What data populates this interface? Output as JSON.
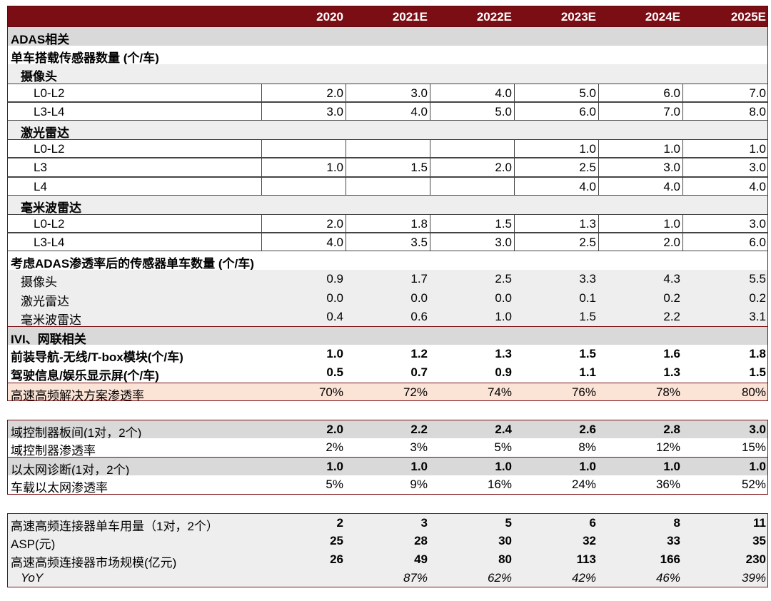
{
  "years": [
    "2020",
    "2021E",
    "2022E",
    "2023E",
    "2024E",
    "2025E"
  ],
  "colors": {
    "header_bg": "#7b0d14",
    "pink_row": "#fbe3d6",
    "section_gray": "#d9d9d9"
  },
  "sections": {
    "adas": "ADAS相关",
    "sensor_count": "单车搭载传感器数量 (个/车)",
    "camera": "摄像头",
    "lidar": "激光雷达",
    "mmwave": "毫米波雷达",
    "penetrated_count": "考虑ADAS渗透率后的传感器单车数量 (个/车)",
    "ivi": "IVI、网联相关"
  },
  "camera_rows": [
    {
      "label": "L0-L2",
      "values": [
        "2.0",
        "3.0",
        "4.0",
        "5.0",
        "6.0",
        "7.0"
      ]
    },
    {
      "label": "L3-L4",
      "values": [
        "3.0",
        "4.0",
        "5.0",
        "6.0",
        "7.0",
        "8.0"
      ]
    }
  ],
  "lidar_rows": [
    {
      "label": "L0-L2",
      "values": [
        "",
        "",
        "",
        "1.0",
        "1.0",
        "1.0"
      ]
    },
    {
      "label": "L3",
      "values": [
        "1.0",
        "1.5",
        "2.0",
        "2.5",
        "3.0",
        "3.0"
      ]
    },
    {
      "label": "L4",
      "values": [
        "",
        "",
        "",
        "4.0",
        "4.0",
        "4.0"
      ]
    }
  ],
  "mmwave_rows": [
    {
      "label": "L0-L2",
      "values": [
        "2.0",
        "1.8",
        "1.5",
        "1.3",
        "1.0",
        "3.0"
      ]
    },
    {
      "label": "L3-L4",
      "values": [
        "4.0",
        "3.5",
        "3.0",
        "2.5",
        "2.0",
        "6.0"
      ]
    }
  ],
  "penetrated_rows": [
    {
      "label": "摄像头",
      "values": [
        "0.9",
        "1.7",
        "2.5",
        "3.3",
        "4.3",
        "5.5"
      ]
    },
    {
      "label": "激光雷达",
      "values": [
        "0.0",
        "0.0",
        "0.0",
        "0.1",
        "0.2",
        "0.2"
      ]
    },
    {
      "label": "毫米波雷达",
      "values": [
        "0.4",
        "0.6",
        "1.0",
        "1.5",
        "2.2",
        "3.1"
      ]
    }
  ],
  "ivi_rows": [
    {
      "label": "前装导航-无线/T-box模块(个/车)",
      "values": [
        "1.0",
        "1.2",
        "1.3",
        "1.5",
        "1.6",
        "1.8"
      ]
    },
    {
      "label": "驾驶信息/娱乐显示屏(个/车)",
      "values": [
        "0.5",
        "0.7",
        "0.9",
        "1.1",
        "1.3",
        "1.5"
      ]
    }
  ],
  "hs_penetration": {
    "label": "高速高频解决方案渗透率",
    "values": [
      "70%",
      "72%",
      "74%",
      "76%",
      "78%",
      "80%"
    ]
  },
  "domain_rows": [
    {
      "label": "域控制器板间(1对，2个)",
      "values": [
        "2.0",
        "2.2",
        "2.4",
        "2.6",
        "2.8",
        "3.0"
      ]
    },
    {
      "label": "域控制器渗透率",
      "values": [
        "2%",
        "3%",
        "5%",
        "8%",
        "12%",
        "15%"
      ]
    },
    {
      "label": "以太网诊断(1对，2个)",
      "values": [
        "1.0",
        "1.0",
        "1.0",
        "1.0",
        "1.0",
        "1.0"
      ]
    },
    {
      "label": "车载以太网渗透率",
      "values": [
        "5%",
        "9%",
        "16%",
        "24%",
        "36%",
        "52%"
      ]
    }
  ],
  "market_rows": [
    {
      "label": "高速高频连接器单车用量（1对，2个）",
      "values": [
        "2",
        "3",
        "5",
        "6",
        "8",
        "11"
      ]
    },
    {
      "label": "ASP(元)",
      "values": [
        "25",
        "28",
        "30",
        "32",
        "33",
        "35"
      ]
    },
    {
      "label": "高速高频连接器市场规模(亿元)",
      "values": [
        "26",
        "49",
        "80",
        "113",
        "166",
        "230"
      ]
    },
    {
      "label": "YoY",
      "values": [
        "",
        "87%",
        "62%",
        "42%",
        "46%",
        "39%"
      ]
    }
  ]
}
